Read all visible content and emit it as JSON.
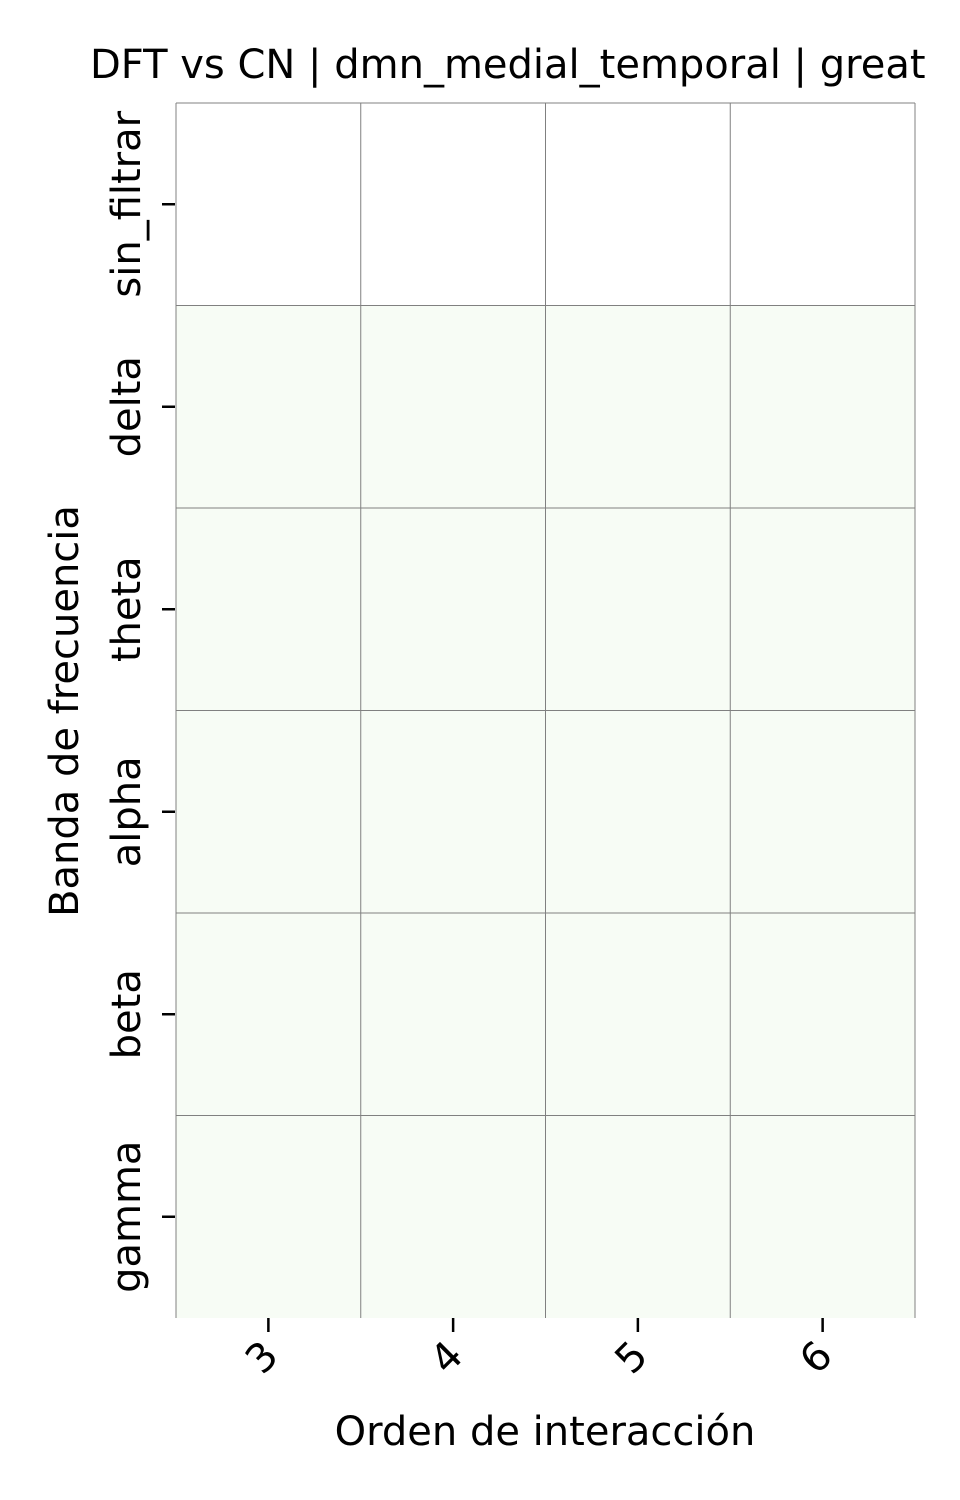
{
  "chart_data": {
    "type": "heatmap",
    "title": "DFT vs CN | dmn_medial_temporal | great",
    "xlabel": "Orden de interacción",
    "ylabel": "Banda de frecuencia",
    "x_categories": [
      "3",
      "4",
      "5",
      "6"
    ],
    "y_categories": [
      "sin_filtrar",
      "delta",
      "theta",
      "alpha",
      "beta",
      "gamma"
    ],
    "colormap": "Greens",
    "cell_colors": [
      [
        "#ffffff",
        "#ffffff",
        "#ffffff",
        "#ffffff"
      ],
      [
        "#f7fcf5",
        "#f7fcf5",
        "#f7fcf5",
        "#f7fcf5"
      ],
      [
        "#f7fcf5",
        "#f7fcf5",
        "#f7fcf5",
        "#f7fcf5"
      ],
      [
        "#f7fcf5",
        "#f7fcf5",
        "#f7fcf5",
        "#f7fcf5"
      ],
      [
        "#f7fcf5",
        "#f7fcf5",
        "#f7fcf5",
        "#f7fcf5"
      ],
      [
        "#f7fcf5",
        "#f7fcf5",
        "#f7fcf5",
        "#f7fcf5"
      ]
    ],
    "grid": true,
    "grid_color": "#808080"
  }
}
